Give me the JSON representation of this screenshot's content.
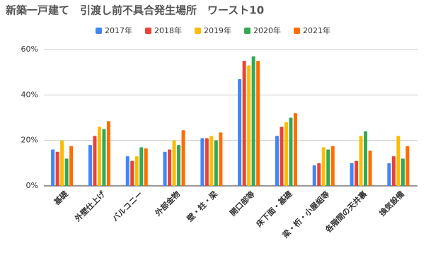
{
  "chart_data": {
    "type": "bar",
    "title": "新築一戸建て　引渡し前不具合発生場所　ワースト10",
    "categories": [
      "基礎",
      "外壁仕上げ",
      "バルコニー",
      "外部金物",
      "壁・柱・梁",
      "開口部等",
      "床下面・基礎",
      "梁・桁・小屋組等",
      "各階間の天井裏",
      "換気設備"
    ],
    "series": [
      {
        "name": "2017年",
        "color": "#4285f4",
        "values": [
          16,
          18,
          13,
          15,
          21,
          47,
          22,
          9,
          10,
          10
        ]
      },
      {
        "name": "2018年",
        "color": "#ea4335",
        "values": [
          15,
          22,
          11,
          16,
          21,
          55,
          26,
          10,
          11,
          13
        ]
      },
      {
        "name": "2019年",
        "color": "#fbbc04",
        "values": [
          20,
          26,
          13,
          20,
          22,
          53,
          28,
          17,
          22,
          22
        ]
      },
      {
        "name": "2020年",
        "color": "#34a853",
        "values": [
          12,
          25,
          17,
          18,
          20,
          57,
          30,
          16,
          24,
          12
        ]
      },
      {
        "name": "2021年",
        "color": "#ff6d01",
        "values": [
          17.5,
          28.5,
          16.5,
          24.5,
          23.5,
          55,
          32,
          17.5,
          15.5,
          17.5
        ]
      }
    ],
    "ylim": [
      0,
      60
    ],
    "yticks": [
      {
        "value": 0,
        "label": "0%"
      },
      {
        "value": 20,
        "label": "20%"
      },
      {
        "value": 40,
        "label": "40%"
      },
      {
        "value": 60,
        "label": "60%"
      }
    ],
    "grid": true,
    "legend": "top"
  }
}
